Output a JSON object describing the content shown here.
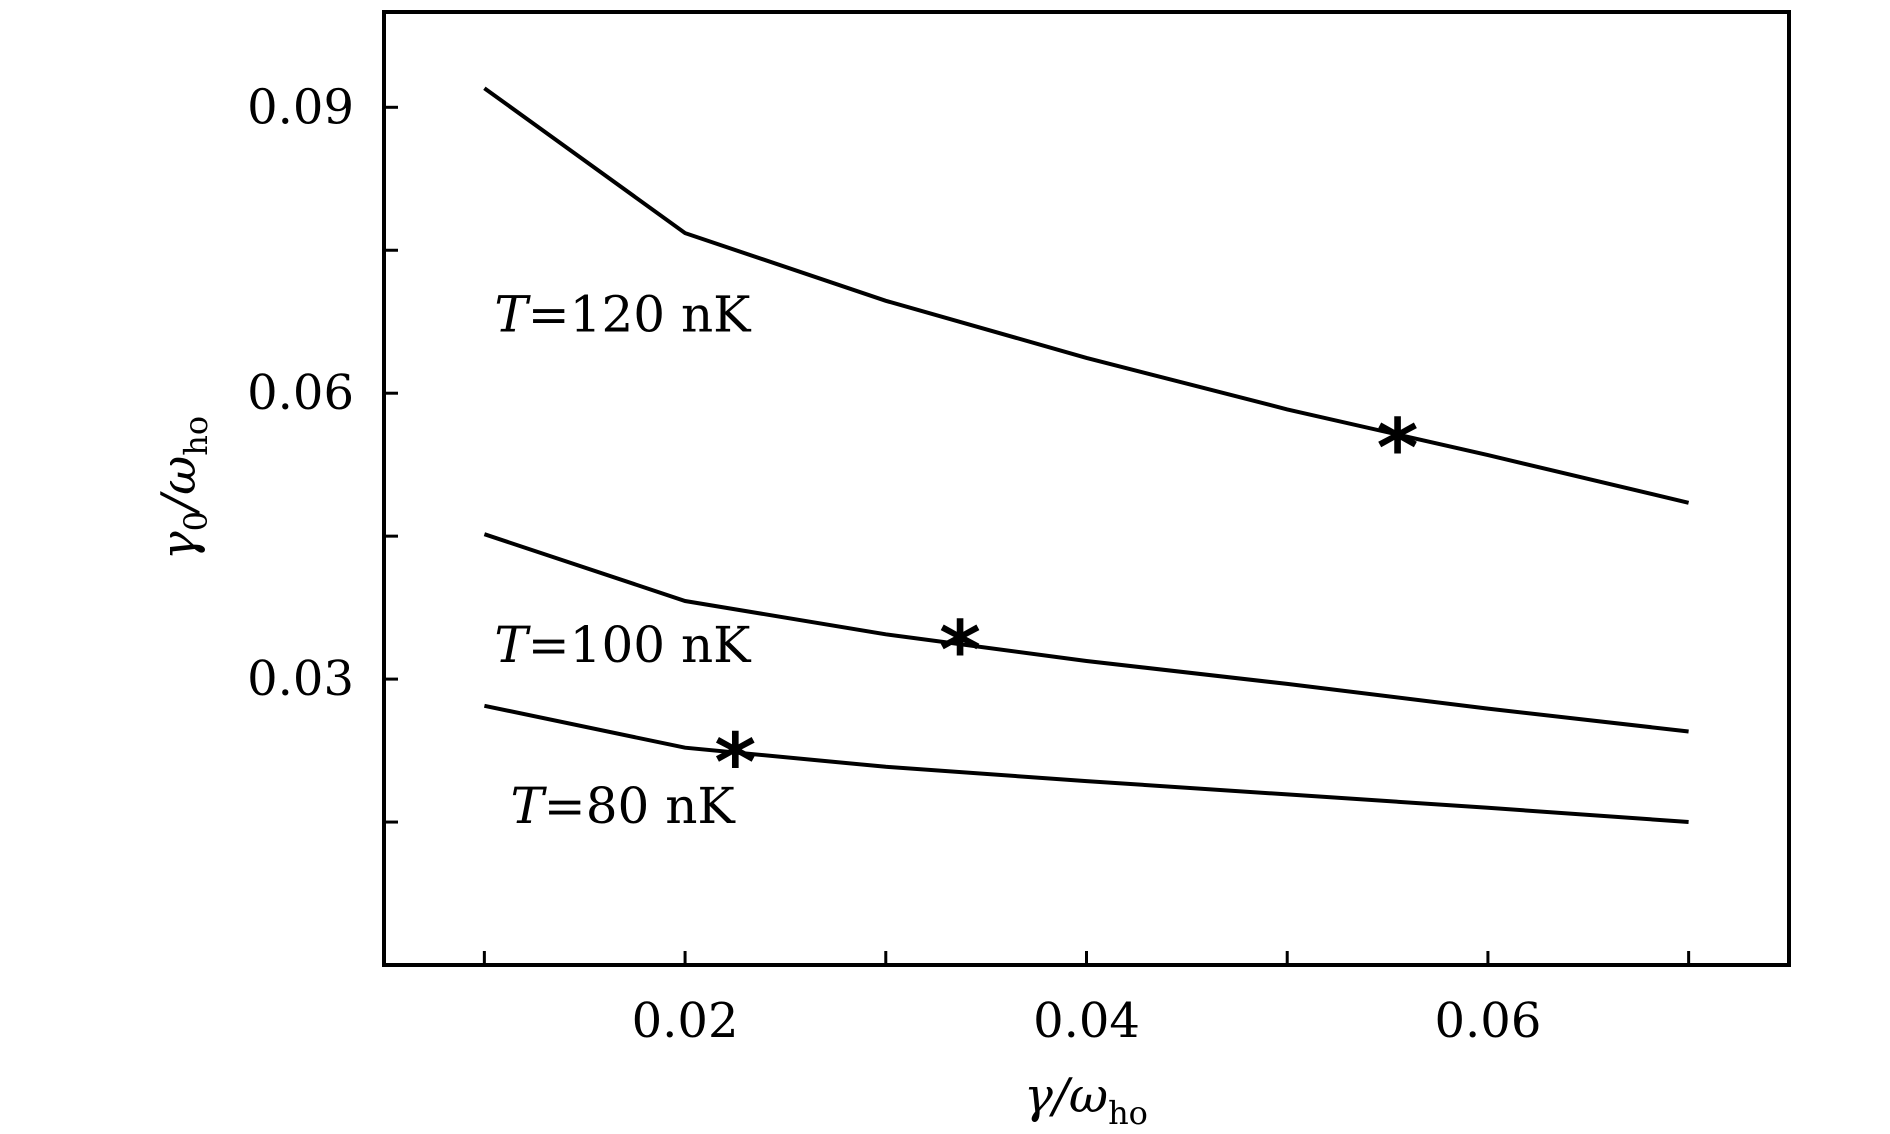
{
  "chart_data": {
    "type": "line",
    "title": "",
    "xlabel": {
      "main": "γ/ω",
      "sub": "ho"
    },
    "ylabel": {
      "main": "γ",
      "sub0": "0",
      "slash": "/ω",
      "sub": "ho"
    },
    "xlim": [
      0.005,
      0.075
    ],
    "ylim": [
      0.0,
      0.1
    ],
    "xticks": [
      {
        "value": 0.01,
        "label": ""
      },
      {
        "value": 0.02,
        "label": "0.02"
      },
      {
        "value": 0.03,
        "label": ""
      },
      {
        "value": 0.04,
        "label": "0.04"
      },
      {
        "value": 0.05,
        "label": ""
      },
      {
        "value": 0.06,
        "label": "0.06"
      },
      {
        "value": 0.07,
        "label": ""
      }
    ],
    "yticks": [
      {
        "value": 0.015,
        "label": ""
      },
      {
        "value": 0.03,
        "label": "0.03"
      },
      {
        "value": 0.045,
        "label": ""
      },
      {
        "value": 0.06,
        "label": "0.06"
      },
      {
        "value": 0.075,
        "label": ""
      },
      {
        "value": 0.09,
        "label": "0.09"
      }
    ],
    "series": [
      {
        "name": "T=120 nK",
        "label": {
          "var": "T",
          "eq": "=",
          "val": "120 nK"
        },
        "label_anchor": {
          "x": 0.0105,
          "y": 0.0665
        },
        "x": [
          0.01,
          0.02,
          0.03,
          0.04,
          0.05,
          0.06,
          0.07
        ],
        "y": [
          0.092,
          0.0768,
          0.0697,
          0.0637,
          0.0583,
          0.0535,
          0.0485
        ],
        "marker": {
          "x": 0.0555,
          "y": 0.0555,
          "symbol": "*"
        }
      },
      {
        "name": "T=100 nK",
        "label": {
          "var": "T",
          "eq": "=",
          "val": "100 nK"
        },
        "label_anchor": {
          "x": 0.0105,
          "y": 0.0318
        },
        "x": [
          0.01,
          0.02,
          0.03,
          0.04,
          0.05,
          0.06,
          0.07
        ],
        "y": [
          0.0452,
          0.0382,
          0.0347,
          0.0319,
          0.0295,
          0.0269,
          0.0245
        ],
        "marker": {
          "x": 0.0337,
          "y": 0.0343,
          "symbol": "*"
        }
      },
      {
        "name": "T=80 nK",
        "label": {
          "var": "T",
          "eq": "=",
          "val": "80 nK"
        },
        "label_anchor": {
          "x": 0.0113,
          "y": 0.0149
        },
        "x": [
          0.01,
          0.02,
          0.03,
          0.04,
          0.05,
          0.06,
          0.07
        ],
        "y": [
          0.0272,
          0.0228,
          0.0208,
          0.0193,
          0.0179,
          0.0165,
          0.015
        ],
        "marker": {
          "x": 0.0225,
          "y": 0.0225,
          "symbol": "*"
        }
      }
    ]
  }
}
